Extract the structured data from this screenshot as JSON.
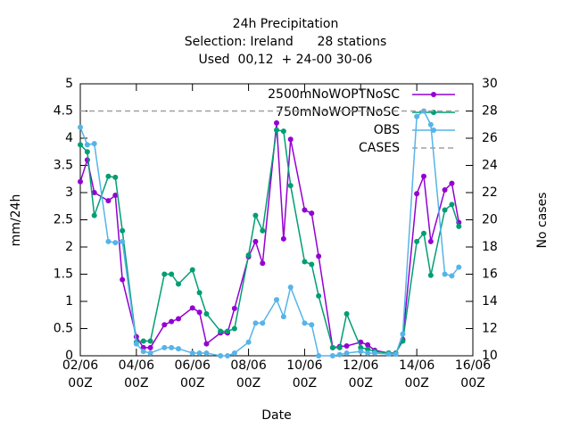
{
  "chart_data": {
    "type": "line",
    "title": "24h Precipitation",
    "subtitle": [
      "Selection: Ireland      28 stations",
      "Used  00,12  + 24-00 30-06"
    ],
    "xlabel": "Date",
    "ylabel": "mm/24h",
    "y2label": "No cases",
    "x": [
      0,
      6,
      12,
      24,
      30,
      36,
      48,
      54,
      60,
      72,
      78,
      84,
      96,
      102,
      108,
      120,
      126,
      132,
      144,
      150,
      156,
      168,
      174,
      180,
      192,
      198,
      204,
      216,
      222,
      228,
      240,
      246,
      252,
      264,
      270,
      276,
      288,
      294,
      300,
      312,
      318,
      324
    ],
    "xlim": [
      0,
      336
    ],
    "xticks": [
      {
        "value": 0,
        "label": "02/06 00Z"
      },
      {
        "value": 48,
        "label": "04/06 00Z"
      },
      {
        "value": 96,
        "label": "06/06 00Z"
      },
      {
        "value": 144,
        "label": "08/06 00Z"
      },
      {
        "value": 192,
        "label": "10/06 00Z"
      },
      {
        "value": 240,
        "label": "12/06 00Z"
      },
      {
        "value": 288,
        "label": "14/06 00Z"
      },
      {
        "value": 336,
        "label": "16/06 00Z"
      }
    ],
    "ylim": [
      0,
      5
    ],
    "yticks": [
      0,
      0.5,
      1,
      1.5,
      2,
      2.5,
      3,
      3.5,
      4,
      4.5,
      5
    ],
    "y2lim": [
      10,
      30
    ],
    "y2ticks": [
      10,
      12,
      14,
      16,
      18,
      20,
      22,
      24,
      26,
      28,
      30
    ],
    "grid": false,
    "legend": "top-right",
    "series": [
      {
        "name": "2500mNoWOPTNoSC",
        "color": "#9400d3",
        "marker": true,
        "values": [
          3.2,
          3.6,
          3.0,
          2.85,
          2.95,
          1.4,
          0.35,
          0.15,
          0.15,
          0.57,
          0.63,
          0.68,
          0.88,
          0.8,
          0.22,
          0.42,
          0.42,
          0.87,
          1.82,
          2.1,
          1.7,
          4.28,
          2.15,
          3.98,
          2.68,
          2.62,
          1.83,
          0.15,
          0.17,
          0.18,
          0.25,
          0.2,
          0.1,
          0.05,
          0.05,
          0.3,
          2.98,
          3.3,
          2.1,
          3.05,
          3.17,
          2.45
        ]
      },
      {
        "name": "750mNoWOPTNoSC",
        "color": "#009e73",
        "marker": true,
        "values": [
          3.88,
          3.75,
          2.58,
          3.3,
          3.28,
          2.3,
          0.25,
          0.27,
          0.27,
          1.5,
          1.5,
          1.32,
          1.58,
          1.16,
          0.77,
          0.45,
          0.45,
          0.5,
          1.85,
          2.58,
          2.3,
          4.15,
          4.13,
          3.13,
          1.73,
          1.68,
          1.1,
          0.15,
          0.15,
          0.77,
          0.15,
          0.12,
          0.08,
          0.05,
          0.05,
          0.27,
          2.1,
          2.25,
          1.48,
          2.68,
          2.78,
          2.38
        ]
      },
      {
        "name": "OBS",
        "color": "#56b4e9",
        "marker": true,
        "values": [
          4.2,
          3.88,
          3.9,
          2.1,
          2.08,
          2.1,
          0.22,
          0.08,
          0.05,
          0.15,
          0.15,
          0.13,
          0.05,
          0.05,
          0.05,
          0,
          0,
          0.05,
          0.25,
          0.6,
          0.6,
          1.03,
          0.72,
          1.26,
          0.6,
          0.57,
          0,
          0,
          0.02,
          0.05,
          0.08,
          0.05,
          0.05,
          0.03,
          0.03,
          0.4,
          4.4,
          4.5,
          4.25,
          1.5,
          1.47,
          1.63
        ]
      },
      {
        "name": "CASES",
        "color": "#a0a0a0",
        "axis": "y2",
        "dashed": true,
        "marker": false,
        "values": [
          28,
          28,
          28,
          28,
          28,
          28,
          28,
          28,
          28,
          28,
          28,
          28,
          28,
          28,
          28,
          28,
          28,
          28,
          28,
          28,
          28,
          28,
          28,
          28,
          28,
          28,
          28,
          28,
          28,
          28,
          28,
          28,
          28,
          28,
          28,
          28,
          28,
          28,
          28,
          28,
          28,
          28
        ]
      }
    ]
  }
}
